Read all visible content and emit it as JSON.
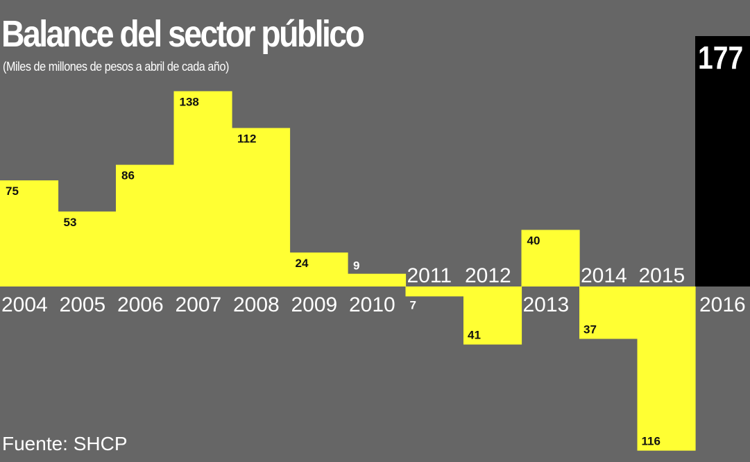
{
  "chart_data": {
    "type": "bar",
    "title": "Balance del sector público",
    "subtitle": "(Miles de millones de pesos a abril de cada año)",
    "source": "Fuente: SHCP",
    "categories": [
      "2004",
      "2005",
      "2006",
      "2007",
      "2008",
      "2009",
      "2010",
      "2011",
      "2012",
      "2013",
      "2014",
      "2015",
      "2016"
    ],
    "values": [
      75,
      53,
      86,
      138,
      112,
      24,
      9,
      -7,
      -41,
      40,
      -37,
      -116,
      177
    ],
    "value_labels": [
      "75",
      "53",
      "86",
      "138",
      "112",
      "24",
      "9",
      "7",
      "41",
      "40",
      "37",
      "116",
      "177"
    ],
    "ylim": [
      -116,
      177
    ],
    "colors": {
      "background": "#666666",
      "bar": "#ffff33",
      "highlight_bar": "#000000",
      "text_light": "#ffffff",
      "text_dark": "#111111"
    },
    "highlight_category": "2016"
  }
}
